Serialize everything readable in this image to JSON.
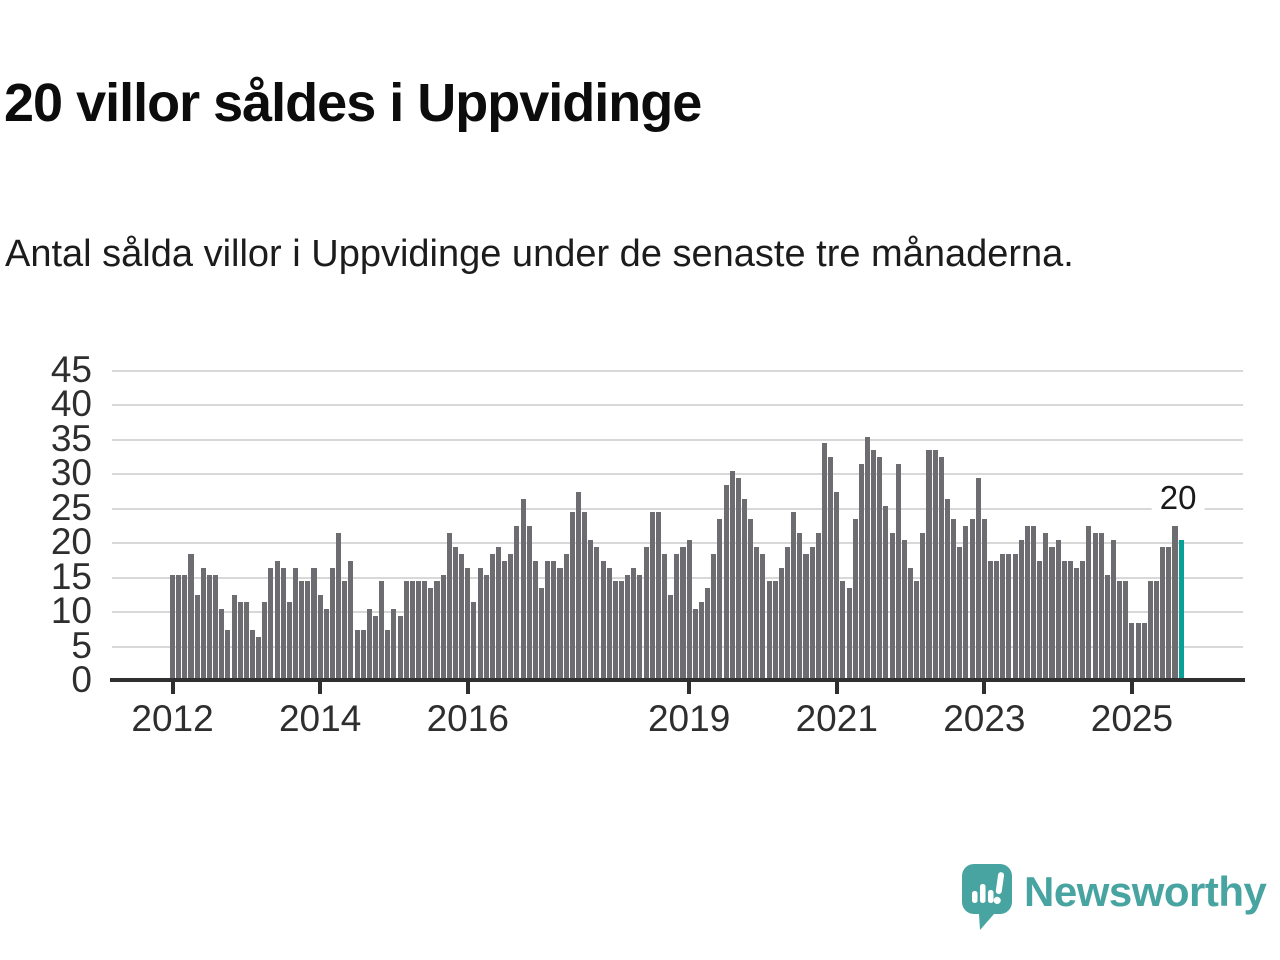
{
  "title": "20 villor såldes i Uppvidinge",
  "subtitle": "Antal sålda villor i Uppvidinge under de senaste tre månaderna.",
  "chart_data": {
    "type": "bar",
    "title": "20 villor såldes i Uppvidinge",
    "xlabel": "",
    "ylabel": "",
    "x_start": "2012-01",
    "x_interval": "month",
    "x_end": "2025-09",
    "values": [
      15,
      15,
      15,
      18,
      12,
      16,
      15,
      15,
      10,
      7,
      12,
      11,
      11,
      7,
      6,
      11,
      16,
      17,
      16,
      11,
      16,
      14,
      14,
      16,
      12,
      10,
      16,
      21,
      14,
      17,
      7,
      7,
      10,
      9,
      14,
      7,
      10,
      9,
      14,
      14,
      14,
      14,
      13,
      14,
      15,
      21,
      19,
      18,
      16,
      11,
      16,
      15,
      18,
      19,
      17,
      18,
      22,
      26,
      22,
      17,
      13,
      17,
      17,
      16,
      18,
      24,
      27,
      24,
      20,
      19,
      17,
      16,
      14,
      14,
      15,
      16,
      15,
      19,
      24,
      24,
      18,
      12,
      18,
      19,
      20,
      10,
      11,
      13,
      18,
      23,
      28,
      30,
      29,
      26,
      23,
      19,
      18,
      14,
      14,
      16,
      19,
      24,
      21,
      18,
      19,
      21,
      34,
      32,
      27,
      14,
      13,
      23,
      31,
      35,
      33,
      32,
      25,
      21,
      31,
      20,
      16,
      14,
      21,
      33,
      33,
      32,
      26,
      23,
      19,
      22,
      23,
      29,
      23,
      17,
      17,
      18,
      18,
      18,
      20,
      22,
      22,
      17,
      21,
      19,
      20,
      17,
      17,
      16,
      17,
      22,
      21,
      21,
      15,
      20,
      14,
      14,
      8,
      8,
      8,
      14,
      14,
      19,
      19,
      22,
      20
    ],
    "highlight": {
      "index": 164,
      "value": 20,
      "month": "2025-09"
    },
    "annotation": {
      "text": "20"
    },
    "ylim": [
      0,
      45
    ],
    "yticks": [
      0,
      5,
      10,
      15,
      20,
      25,
      30,
      35,
      40,
      45
    ],
    "xticks": [
      {
        "label": "2012",
        "month_index": 0
      },
      {
        "label": "2014",
        "month_index": 24
      },
      {
        "label": "2016",
        "month_index": 48
      },
      {
        "label": "2019",
        "month_index": 84
      },
      {
        "label": "2021",
        "month_index": 108
      },
      {
        "label": "2023",
        "month_index": 132
      },
      {
        "label": "2025",
        "month_index": 156
      }
    ],
    "grid": true,
    "legend": null,
    "colors": {
      "bar": "#6d6d71",
      "highlight": "#09a098",
      "grid": "#d8d8d8",
      "axis": "#2f2f2f",
      "tick_text": "#2e2e2e",
      "annotation_text": "#1a1a1a"
    }
  },
  "footer": {
    "brand": "Newsworthy",
    "logo_color": "#47a4a0"
  }
}
